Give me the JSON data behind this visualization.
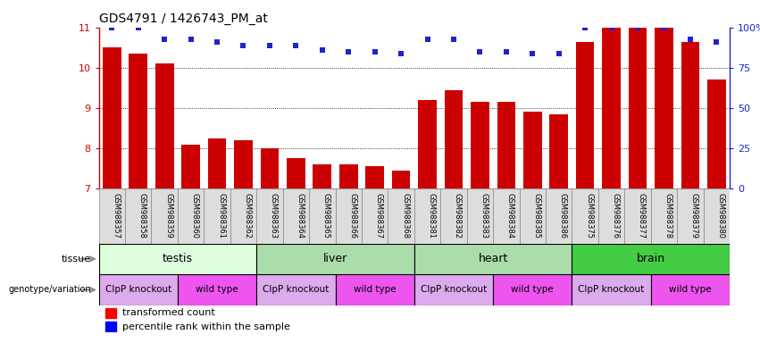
{
  "title": "GDS4791 / 1426743_PM_at",
  "samples": [
    "GSM988357",
    "GSM988358",
    "GSM988359",
    "GSM988360",
    "GSM988361",
    "GSM988362",
    "GSM988363",
    "GSM988364",
    "GSM988365",
    "GSM988366",
    "GSM988367",
    "GSM988368",
    "GSM988381",
    "GSM988382",
    "GSM988383",
    "GSM988384",
    "GSM988385",
    "GSM988386",
    "GSM988375",
    "GSM988376",
    "GSM988377",
    "GSM988378",
    "GSM988379",
    "GSM988380"
  ],
  "bar_values": [
    10.5,
    10.35,
    10.1,
    8.1,
    8.25,
    8.2,
    8.0,
    7.75,
    7.6,
    7.6,
    7.55,
    7.45,
    9.2,
    9.45,
    9.15,
    9.15,
    8.9,
    8.85,
    10.65,
    11.0,
    11.0,
    11.0,
    10.65,
    9.7
  ],
  "percentile_values": [
    11.0,
    11.0,
    10.7,
    10.7,
    10.65,
    10.55,
    10.55,
    10.55,
    10.45,
    10.4,
    10.4,
    10.35,
    10.7,
    10.7,
    10.4,
    10.4,
    10.35,
    10.35,
    11.0,
    11.0,
    11.0,
    11.0,
    10.7,
    10.65
  ],
  "ylim_lo": 7,
  "ylim_hi": 11,
  "yticks": [
    7,
    8,
    9,
    10,
    11
  ],
  "grid_lines": [
    8,
    9,
    10
  ],
  "bar_color": "#cc0000",
  "percentile_color": "#2222cc",
  "tissues": [
    {
      "label": "testis",
      "start": 0,
      "end": 6,
      "color": "#ddffdd"
    },
    {
      "label": "liver",
      "start": 6,
      "end": 12,
      "color": "#aaddaa"
    },
    {
      "label": "heart",
      "start": 12,
      "end": 18,
      "color": "#aaddaa"
    },
    {
      "label": "brain",
      "start": 18,
      "end": 24,
      "color": "#44cc44"
    }
  ],
  "genotypes": [
    {
      "label": "ClpP knockout",
      "start": 0,
      "end": 3,
      "color": "#ddaaee"
    },
    {
      "label": "wild type",
      "start": 3,
      "end": 6,
      "color": "#ee55ee"
    },
    {
      "label": "ClpP knockout",
      "start": 6,
      "end": 9,
      "color": "#ddaaee"
    },
    {
      "label": "wild type",
      "start": 9,
      "end": 12,
      "color": "#ee55ee"
    },
    {
      "label": "ClpP knockout",
      "start": 12,
      "end": 15,
      "color": "#ddaaee"
    },
    {
      "label": "wild type",
      "start": 15,
      "end": 18,
      "color": "#ee55ee"
    },
    {
      "label": "ClpP knockout",
      "start": 18,
      "end": 21,
      "color": "#ddaaee"
    },
    {
      "label": "wild type",
      "start": 21,
      "end": 24,
      "color": "#ee55ee"
    }
  ],
  "right_yticks": [
    0,
    25,
    50,
    75,
    100
  ],
  "right_ylabels": [
    "0",
    "25",
    "50",
    "75",
    "100%"
  ],
  "xlabel_gray": "#dddddd",
  "spine_color_left": "#cc0000",
  "spine_color_right": "#2222cc"
}
